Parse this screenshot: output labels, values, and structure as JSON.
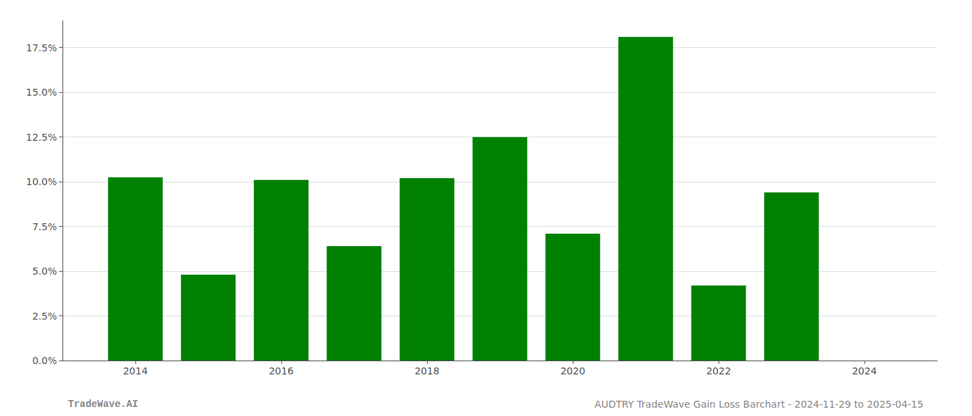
{
  "chart_data": {
    "type": "bar",
    "x": [
      2014,
      2015,
      2016,
      2017,
      2018,
      2019,
      2020,
      2021,
      2022,
      2023
    ],
    "values": [
      0.1025,
      0.048,
      0.101,
      0.064,
      0.102,
      0.125,
      0.071,
      0.181,
      0.042,
      0.094
    ],
    "color": "#008000",
    "xlim": [
      2013.0,
      2025.0
    ],
    "xticks": [
      2014,
      2016,
      2018,
      2020,
      2022,
      2024
    ],
    "ylim": [
      0,
      0.19
    ],
    "yticks": [
      {
        "value": 0.0,
        "label": "0.0%"
      },
      {
        "value": 0.025,
        "label": "2.5%"
      },
      {
        "value": 0.05,
        "label": "5.0%"
      },
      {
        "value": 0.075,
        "label": "7.5%"
      },
      {
        "value": 0.1,
        "label": "10.0%"
      },
      {
        "value": 0.125,
        "label": "12.5%"
      },
      {
        "value": 0.15,
        "label": "15.0%"
      },
      {
        "value": 0.175,
        "label": "17.5%"
      }
    ],
    "grid": true,
    "annotations": [
      "TradeWave.AI",
      "AUDTRY TradeWave Gain Loss Barchart - 2024-11-29 to 2025-04-15"
    ]
  }
}
